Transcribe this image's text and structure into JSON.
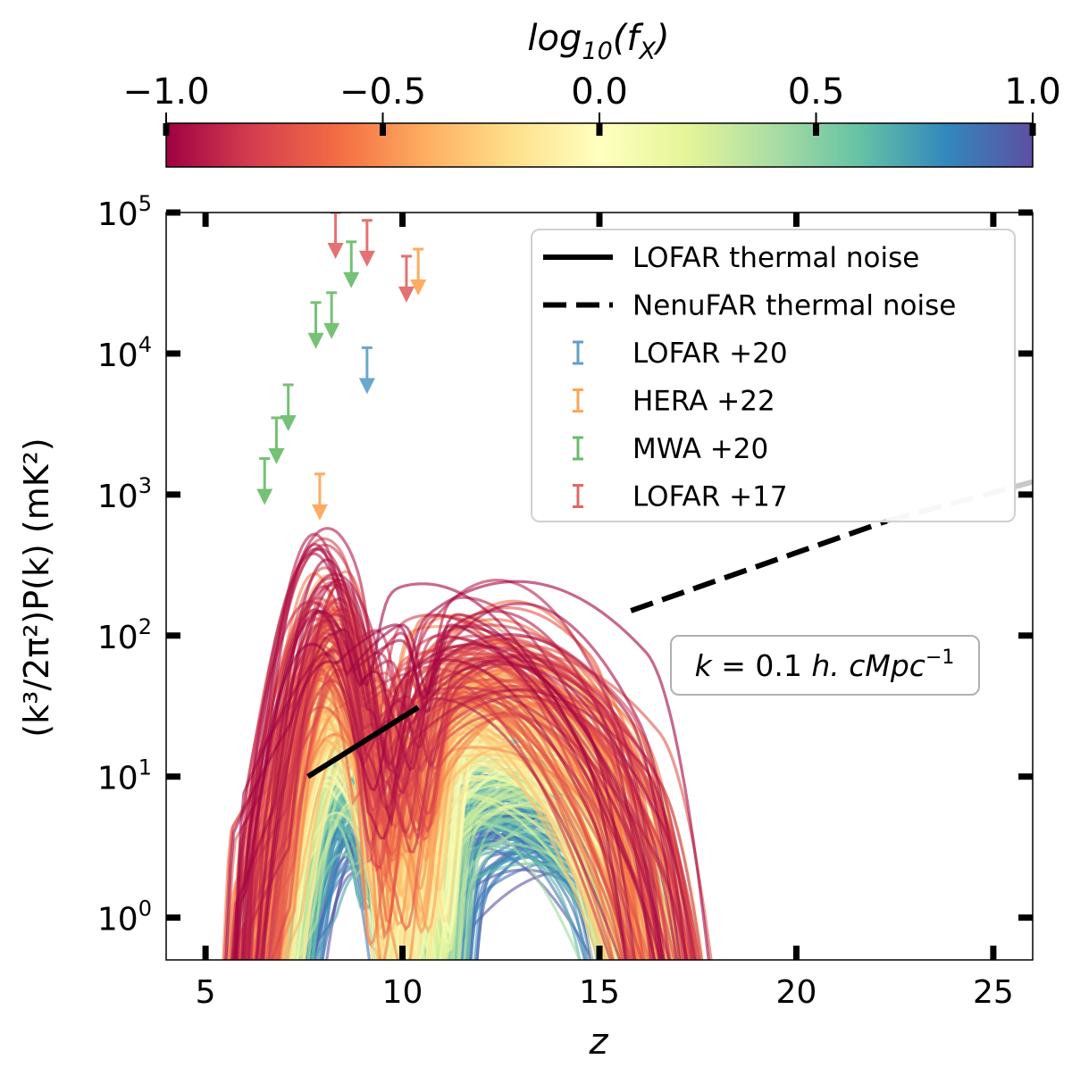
{
  "chart_data": {
    "type": "line",
    "title": "",
    "xlabel": "z",
    "ylabel": "(k³/2π²)P(k) (mK²)",
    "xlim": [
      4,
      26
    ],
    "ylim_log10": [
      -0.3,
      5.0
    ],
    "yscale": "log",
    "x_ticks": [
      "5",
      "10",
      "15",
      "20",
      "25"
    ],
    "y_ticks": [
      {
        "base": "10",
        "exp": "5"
      },
      {
        "base": "10",
        "exp": "4"
      },
      {
        "base": "10",
        "exp": "3"
      },
      {
        "base": "10",
        "exp": "2"
      },
      {
        "base": "10",
        "exp": "1"
      },
      {
        "base": "10",
        "exp": "0"
      }
    ],
    "colorbar": {
      "label": "log₁₀(f_X)",
      "label_main": "log",
      "label_sub": "10",
      "label_arg": "(f",
      "label_arg_sub": "X",
      "label_close": ")",
      "range": [
        -1.0,
        1.0
      ],
      "ticks": [
        "−1.0",
        "−0.5",
        "0.0",
        "0.5",
        "1.0"
      ],
      "colormap": [
        "#9e0142",
        "#d53e4f",
        "#f46d43",
        "#fdae61",
        "#fee08b",
        "#ffffbf",
        "#e6f598",
        "#abdda4",
        "#66c2a5",
        "#3288bd",
        "#5e4fa2"
      ]
    },
    "annotation": "k = 0.1 h. cMpc⁻¹",
    "annotation_parts": {
      "k": "k",
      "eq": " = 0.1 ",
      "h": "h. cMpc",
      "exp": "−1"
    },
    "legend": [
      {
        "label": "LOFAR thermal noise",
        "style": "solid",
        "color": "#000000"
      },
      {
        "label": "NenuFAR thermal noise",
        "style": "dashed",
        "color": "#000000"
      },
      {
        "label": "LOFAR +20",
        "style": "errorbar",
        "color": "#1f77b4"
      },
      {
        "label": "HERA +22",
        "style": "errorbar",
        "color": "#ff7f0e"
      },
      {
        "label": "MWA +20",
        "style": "errorbar",
        "color": "#2ca02c"
      },
      {
        "label": "LOFAR +17",
        "style": "errorbar",
        "color": "#d62728"
      }
    ],
    "series": [
      {
        "name": "LOFAR thermal noise",
        "x": [
          7.6,
          10.4
        ],
        "y": [
          10,
          31
        ]
      },
      {
        "name": "NenuFAR thermal noise",
        "x": [
          15.8,
          22.3,
          26
        ],
        "y": [
          150,
          650,
          1230
        ]
      }
    ],
    "upper_limits": [
      {
        "name": "LOFAR +20",
        "color": "#1f77b4",
        "points": [
          {
            "z": 9.1,
            "y": 11000
          }
        ]
      },
      {
        "name": "HERA +22",
        "color": "#ff7f0e",
        "points": [
          {
            "z": 7.9,
            "y": 1400
          },
          {
            "z": 10.4,
            "y": 55000
          }
        ]
      },
      {
        "name": "MWA +20",
        "color": "#2ca02c",
        "points": [
          {
            "z": 6.5,
            "y": 1800
          },
          {
            "z": 6.8,
            "y": 3500
          },
          {
            "z": 7.1,
            "y": 6000
          },
          {
            "z": 7.8,
            "y": 23000
          },
          {
            "z": 8.2,
            "y": 27000
          },
          {
            "z": 8.7,
            "y": 62000
          }
        ]
      },
      {
        "name": "LOFAR +17",
        "color": "#d62728",
        "points": [
          {
            "z": 8.3,
            "y": 100000
          },
          {
            "z": 9.1,
            "y": 88000
          },
          {
            "z": 10.1,
            "y": 49000
          }
        ]
      }
    ],
    "model_curves_description": "Ensemble of 21-cm power spectrum curves versus z coloured by log10(fX); high peaks (~1000 mK²) at z≈8 for fX=0.1, broad peaks ~100 mK² at z≈10–13, low-fX-independent curves dropping off by z≈19.5"
  }
}
